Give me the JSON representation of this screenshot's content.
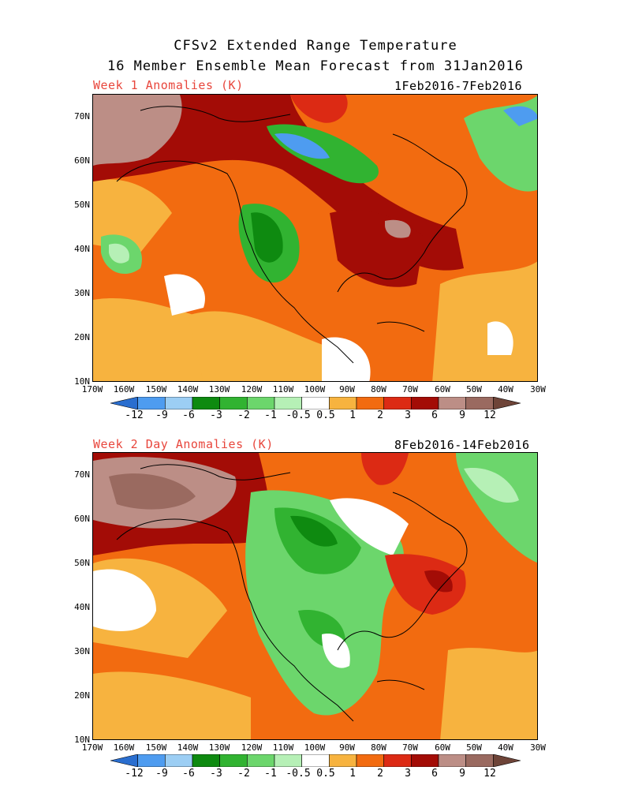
{
  "title_line1": "CFSv2 Extended Range Temperature",
  "title_line2": "16 Member Ensemble Mean Forecast from 31Jan2016",
  "panels": [
    {
      "label": "Week 1 Anomalies (K)",
      "dates": "1Feb2016-7Feb2016"
    },
    {
      "label": "Week 2 Day Anomalies (K)",
      "dates": "8Feb2016-14Feb2016"
    }
  ],
  "lat_labels": [
    "70N",
    "60N",
    "50N",
    "40N",
    "30N",
    "20N",
    "10N"
  ],
  "lon_labels": [
    "170W",
    "160W",
    "150W",
    "140W",
    "130W",
    "120W",
    "110W",
    "100W",
    "90W",
    "80W",
    "70W",
    "60W",
    "50W",
    "40W",
    "30W"
  ],
  "colorbar": {
    "labels": [
      "-12",
      "-9",
      "-6",
      "-3",
      "-2",
      "-1",
      "-0.5",
      "0.5",
      "1",
      "2",
      "3",
      "6",
      "9",
      "12"
    ],
    "colors": [
      "#2a6ecf",
      "#4e9cf0",
      "#9ccef4",
      "#0e8a10",
      "#31b331",
      "#6cd66c",
      "#b6f0b6",
      "#ffffff",
      "#f7b33f",
      "#f26b10",
      "#dc2a14",
      "#a30c06",
      "#bc8e86",
      "#9a6a60",
      "#6e4438"
    ]
  },
  "colors": {
    "title_red": "#e8463c"
  }
}
